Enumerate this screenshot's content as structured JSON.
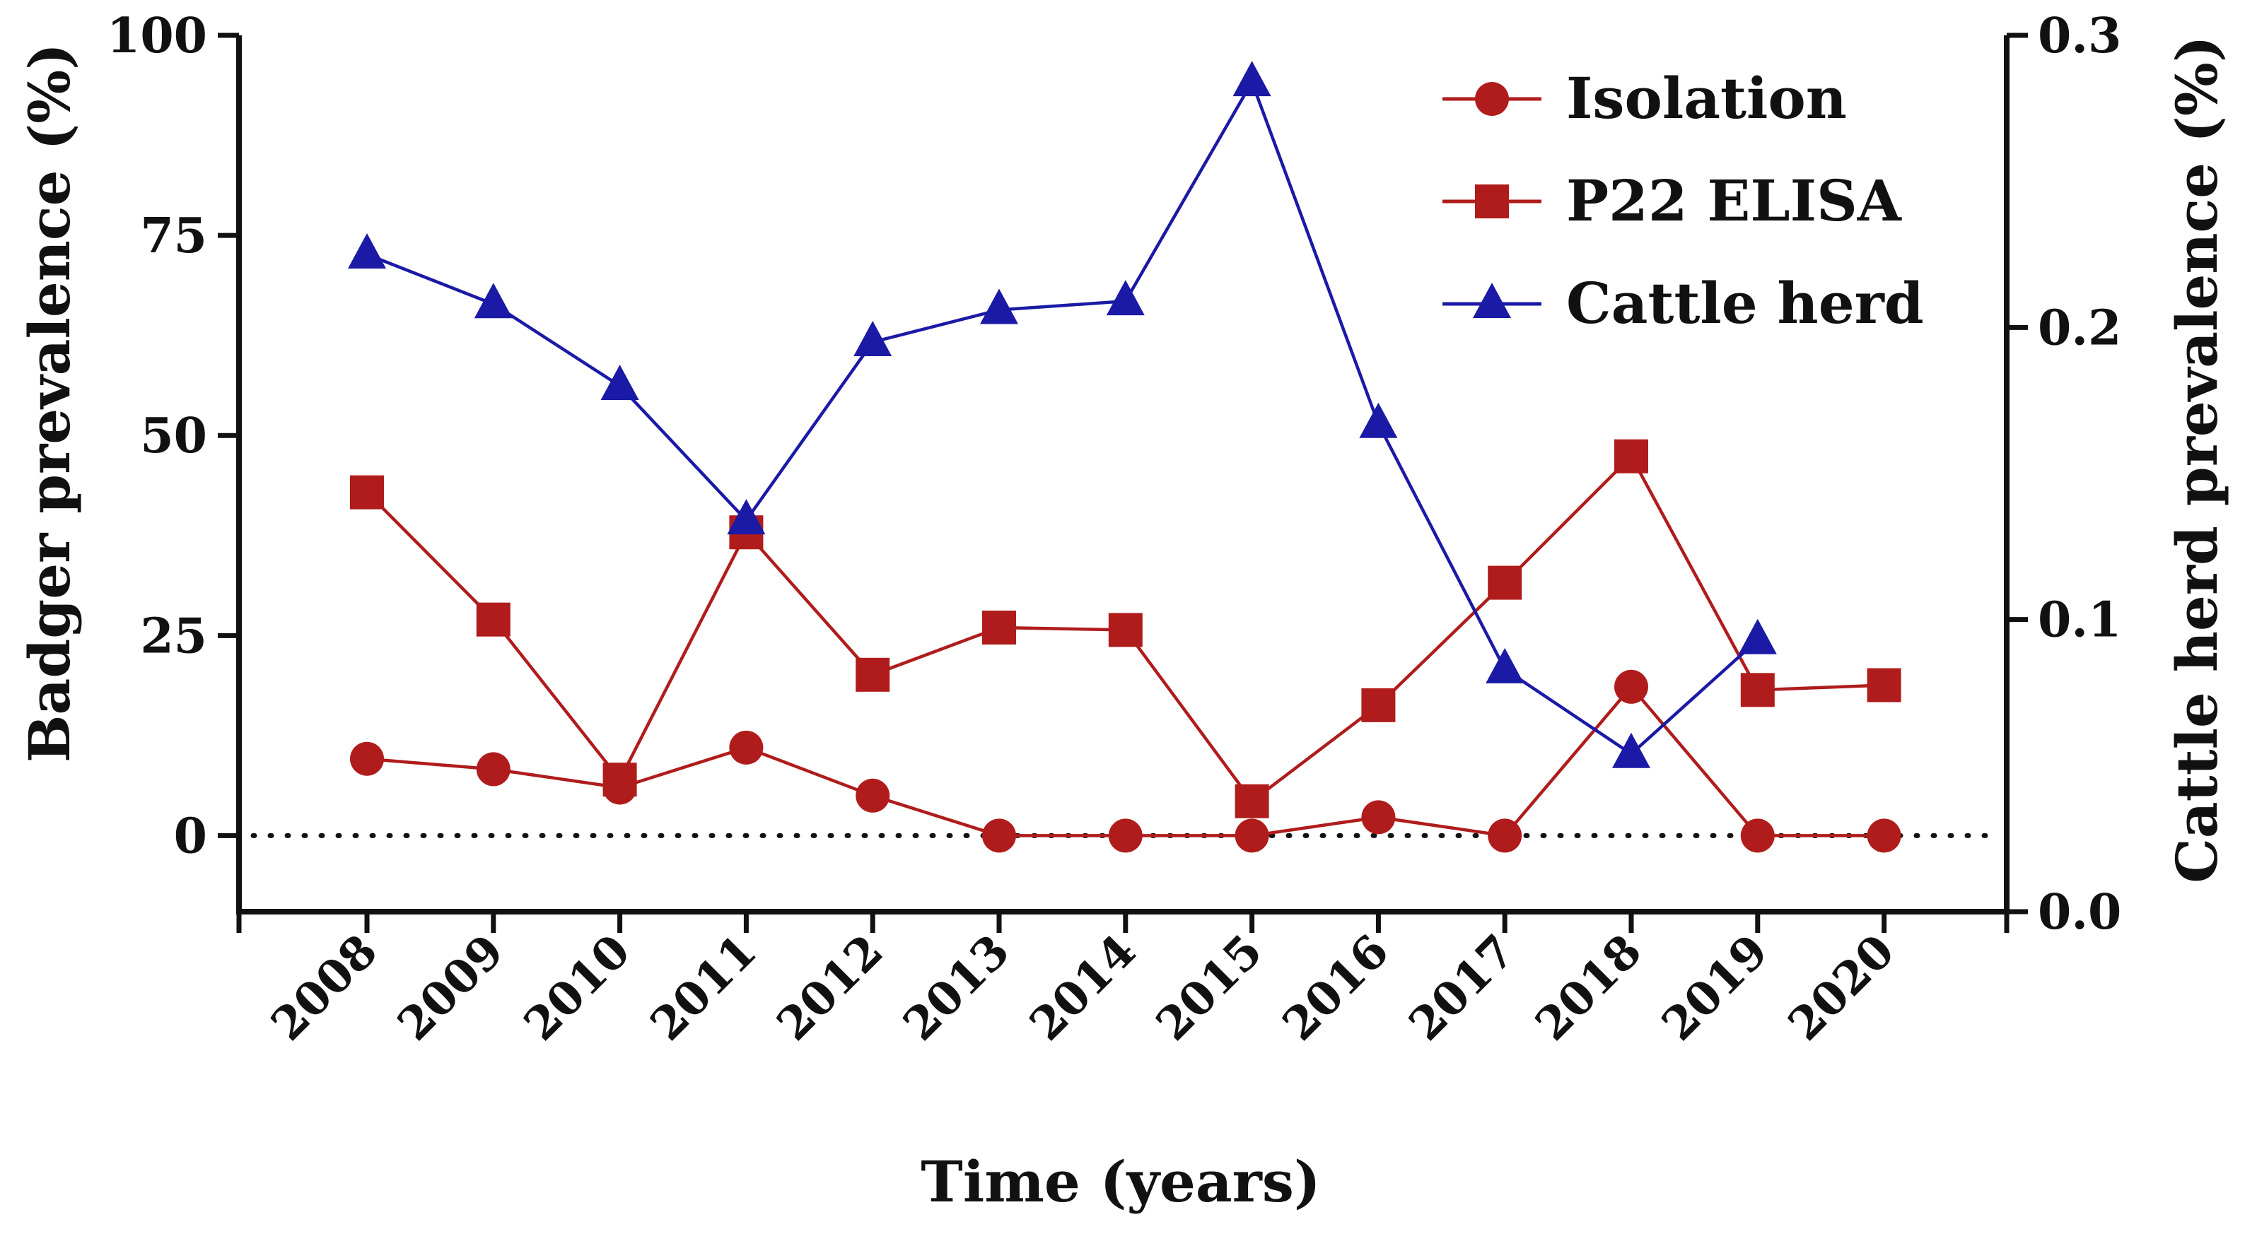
{
  "chart_data": {
    "type": "line",
    "title": "",
    "xlabel": "Time (years)",
    "ylabel_left": "Badger prevalence (%)",
    "ylabel_right": "Cattle herd prevalence (%)",
    "categories": [
      "2008",
      "2009",
      "2010",
      "2011",
      "2012",
      "2013",
      "2014",
      "2015",
      "2016",
      "2017",
      "2018",
      "2019",
      "2020"
    ],
    "left_axis": {
      "range": [
        -9.5,
        100
      ],
      "ticks": [
        0,
        25,
        50,
        75,
        100
      ],
      "tick_labels": [
        "0",
        "25",
        "50",
        "75",
        "100"
      ]
    },
    "right_axis": {
      "range": [
        0.0,
        0.3
      ],
      "ticks": [
        0.0,
        0.1,
        0.2,
        0.3
      ],
      "tick_labels": [
        "0.0",
        "0.1",
        "0.2",
        "0.3"
      ]
    },
    "reference_line": {
      "axis": "left",
      "value": 0,
      "style": "dotted"
    },
    "legend_position": "top-right",
    "series": [
      {
        "name": "Isolation",
        "axis": "left",
        "marker": "circle",
        "color": "#b01c1c",
        "values": [
          9.6,
          8.3,
          6.0,
          11.0,
          5.0,
          0,
          0,
          0,
          2.3,
          0,
          18.6,
          0,
          0
        ]
      },
      {
        "name": "P22 ELISA",
        "axis": "left",
        "marker": "square",
        "color": "#b01c1c",
        "values": [
          42.9,
          27.0,
          7.0,
          37.9,
          20.1,
          26.0,
          25.7,
          4.3,
          16.3,
          31.6,
          47.4,
          18.2,
          18.8
        ]
      },
      {
        "name": "Cattle herd",
        "axis": "right",
        "marker": "triangle",
        "color": "#1a1aa6",
        "values": [
          0.225,
          0.208,
          0.18,
          0.134,
          0.195,
          0.206,
          0.209,
          0.284,
          0.167,
          0.083,
          0.054,
          0.093,
          null
        ]
      }
    ]
  }
}
